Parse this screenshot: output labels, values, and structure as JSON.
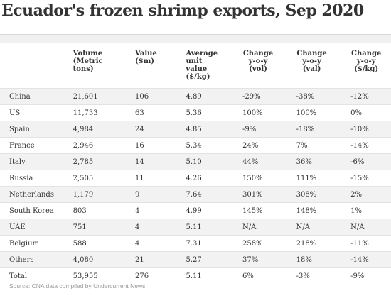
{
  "title": "Ecuador's frozen shrimp exports, Sep 2020",
  "headers": {
    "volume": "Volume\n(Metric\ntons)",
    "value": "Value\n($m)",
    "avg": "Average\nunit\nvalue\n($/kg)",
    "change_vol": "Change\ny-o-y\n(vol)",
    "change_val": "Change\ny-o-y\n(val)",
    "change_kg": "Change\ny-o-y\n($/kg)"
  },
  "rows": [
    {
      "country": "China",
      "volume": "21,601",
      "value": "106",
      "avg": "4.89",
      "change_vol": "-29%",
      "change_val": "-38%",
      "change_kg": "-12%"
    },
    {
      "country": "US",
      "volume": "11,733",
      "value": "63",
      "avg": "5.36",
      "change_vol": "100%",
      "change_val": "100%",
      "change_kg": "0%"
    },
    {
      "country": "Spain",
      "volume": "4,984",
      "value": "24",
      "avg": "4.85",
      "change_vol": "-9%",
      "change_val": "-18%",
      "change_kg": "-10%"
    },
    {
      "country": "France",
      "volume": "2,946",
      "value": "16",
      "avg": "5.34",
      "change_vol": "24%",
      "change_val": "7%",
      "change_kg": "-14%"
    },
    {
      "country": "Italy",
      "volume": "2,785",
      "value": "14",
      "avg": "5.10",
      "change_vol": "44%",
      "change_val": "36%",
      "change_kg": "-6%"
    },
    {
      "country": "Russia",
      "volume": "2,505",
      "value": "11",
      "avg": "4.26",
      "change_vol": "150%",
      "change_val": "111%",
      "change_kg": "-15%"
    },
    {
      "country": "Netherlands",
      "volume": "1,179",
      "value": "9",
      "avg": "7.64",
      "change_vol": "301%",
      "change_val": "308%",
      "change_kg": "2%"
    },
    {
      "country": "South Korea",
      "volume": "803",
      "value": "4",
      "avg": "4.99",
      "change_vol": "145%",
      "change_val": "148%",
      "change_kg": "1%"
    },
    {
      "country": "UAE",
      "volume": "751",
      "value": "4",
      "avg": "5.11",
      "change_vol": "N/A",
      "change_val": "N/A",
      "change_kg": "N/A"
    },
    {
      "country": "Belgium",
      "volume": "588",
      "value": "4",
      "avg": "7.31",
      "change_vol": "258%",
      "change_val": "218%",
      "change_kg": "-11%"
    },
    {
      "country": "Others",
      "volume": "4,080",
      "value": "21",
      "avg": "5.27",
      "change_vol": "37%",
      "change_val": "18%",
      "change_kg": "-14%"
    },
    {
      "country": "Total",
      "volume": "53,955",
      "value": "276",
      "avg": "5.11",
      "change_vol": "6%",
      "change_val": "-3%",
      "change_kg": "-9%"
    }
  ],
  "source": "Source: CNA data compiled by Undercurrent News"
}
